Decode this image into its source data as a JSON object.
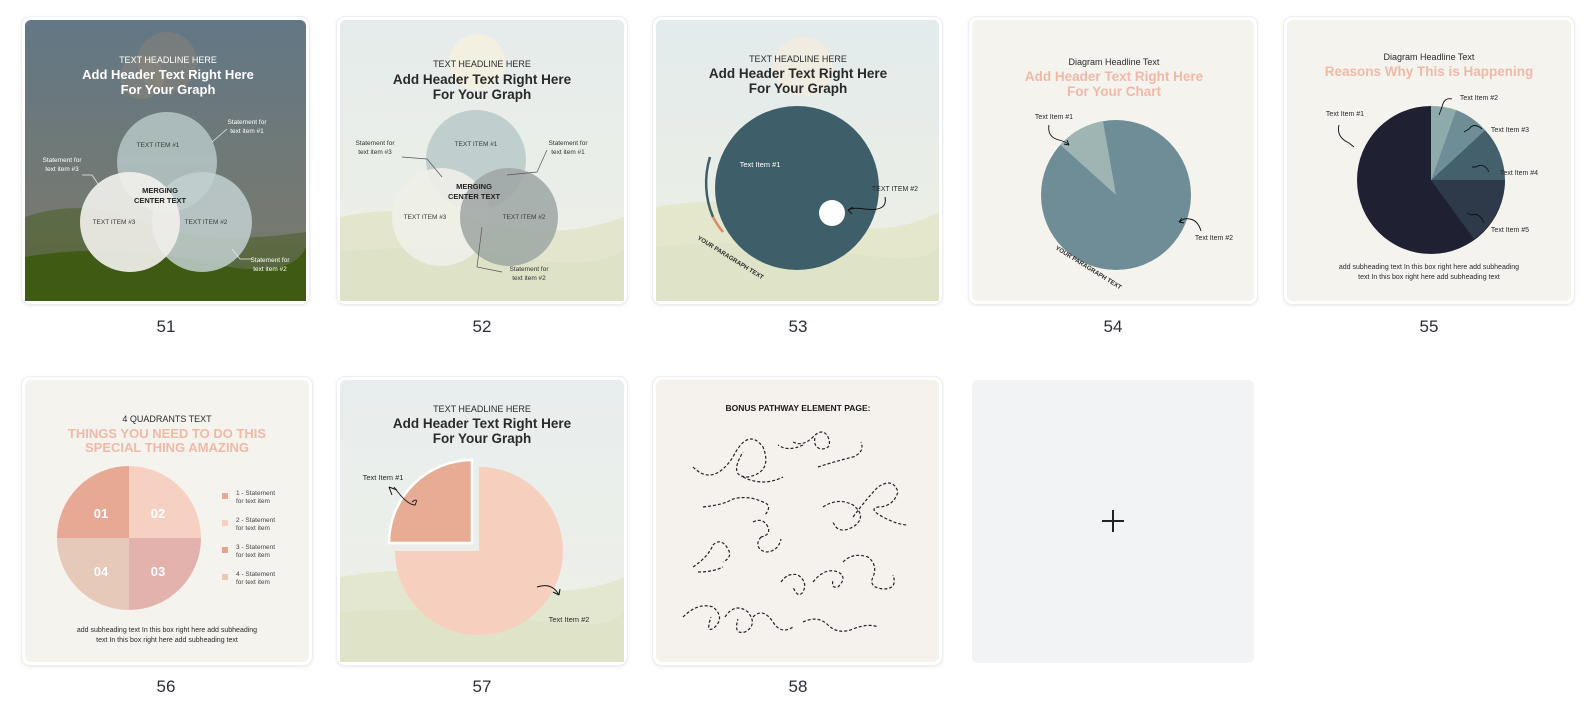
{
  "pages": [
    {
      "number": "51",
      "headline": "TEXT HEADLINE HERE",
      "header_line1": "Add Header Text Right Here",
      "header_line2": "For Your Graph",
      "items": [
        "TEXT ITEM #1",
        "TEXT ITEM #2",
        "TEXT ITEM #3"
      ],
      "center_line1": "MERGING",
      "center_line2": "CENTER TEXT",
      "stmt1_l1": "Statement for",
      "stmt1_l2": "text item #1",
      "stmt2_l1": "Statement for",
      "stmt2_l2": "text item #2",
      "stmt3_l1": "Statement for",
      "stmt3_l2": "text item #3"
    },
    {
      "number": "52",
      "headline": "TEXT HEADLINE HERE",
      "header_line1": "Add Header Text Right Here",
      "header_line2": "For Your Graph",
      "items": [
        "TEXT ITEM #1",
        "TEXT ITEM #2",
        "TEXT ITEM #3"
      ],
      "center_line1": "MERGING",
      "center_line2": "CENTER TEXT",
      "stmt1_l1": "Statement for",
      "stmt1_l2": "text item #1",
      "stmt2_l1": "Statement for",
      "stmt2_l2": "text item #2",
      "stmt3_l1": "Statement for",
      "stmt3_l2": "text item #3"
    },
    {
      "number": "53",
      "headline": "TEXT HEADLINE HERE",
      "header_line1": "Add Header Text Right Here",
      "header_line2": "For Your Graph",
      "item1": "Text Item #1",
      "item2": "TEXT ITEM #2",
      "paragraph": "YOUR PARAGRAPH TEXT"
    },
    {
      "number": "54",
      "headline": "Diagram Headline Text",
      "header_line1": "Add Header Text Right Here",
      "header_line2": "For Your Chart",
      "item1": "Text Item #1",
      "item2": "Text Item #2",
      "paragraph": "YOUR PARAGRAPH TEXT"
    },
    {
      "number": "55",
      "headline": "Diagram Headline Text",
      "header": "Reasons Why This is Happening",
      "items": [
        "Text Item #1",
        "Text Item #2",
        "Text Item #3",
        "Text Item #4",
        "Text Item #5"
      ],
      "sub_line1": "add subheading text In this box right here add subheading",
      "sub_line2": "text In this box right here add subheading text"
    },
    {
      "number": "56",
      "headline": "4 QUADRANTS TEXT",
      "header_line1": "THINGS YOU NEED TO DO THIS",
      "header_line2": "SPECIAL THING AMAZING",
      "quadrants": [
        "01",
        "02",
        "03",
        "04"
      ],
      "legend": [
        {
          "l1": "1 - Statement",
          "l2": "for text item",
          "color": "#e8a994"
        },
        {
          "l1": "2 - Statement",
          "l2": "for text item",
          "color": "#f6d1c2"
        },
        {
          "l1": "3 - Statement",
          "l2": "for text item",
          "color": "#e7a48a"
        },
        {
          "l1": "4 - Statement",
          "l2": "for text item",
          "color": "#e6c9b8"
        }
      ],
      "sub_line1": "add subheading text In this box right here add subheading",
      "sub_line2": "text In this box right here add subheading text"
    },
    {
      "number": "57",
      "headline": "TEXT HEADLINE HERE",
      "header_line1": "Add Header Text Right Here",
      "header_line2": "For Your Graph",
      "item1": "Text Item #1",
      "item2": "Text Item #2"
    },
    {
      "number": "58",
      "title": "BONUS PATHWAY ELEMENT PAGE:"
    }
  ],
  "add_page_icon": "plus-icon",
  "colors": {
    "slate": "#3e5f69",
    "pie_blue": "#6f8d96",
    "navy": "#1f2133",
    "peach_title": "#f0b9a6",
    "peach": "#f7cfbf",
    "peach_dark": "#e8ab93"
  }
}
